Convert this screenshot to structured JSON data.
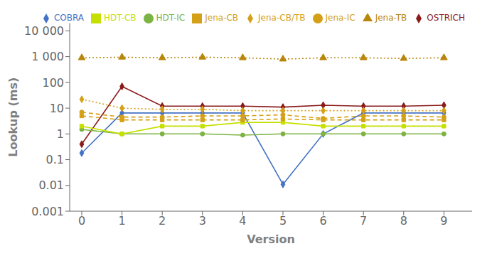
{
  "chart_data": {
    "type": "line",
    "x": [
      0,
      1,
      2,
      3,
      4,
      5,
      6,
      7,
      8,
      9
    ],
    "xlim": [
      -0.3,
      9.7
    ],
    "xticks": [
      0,
      1,
      2,
      3,
      4,
      5,
      6,
      7,
      8,
      9
    ],
    "ylim": [
      0.001,
      20000
    ],
    "yticks": [
      0.001,
      0.01,
      0.1,
      1,
      10,
      100,
      {
        "value": 1000,
        "label": "1 000"
      },
      {
        "value": 10000,
        "label": "10 000"
      }
    ],
    "log": "y",
    "grid": false,
    "legend": "upper right",
    "x_label": "Version",
    "y_label": "Lookup (ms)",
    "series": [
      {
        "name": "OSTRICH",
        "color": "#8B1A1A",
        "marker": "diamond",
        "line_style": "solid",
        "values": [
          0.4,
          70,
          12,
          12,
          12,
          11,
          13,
          12,
          12,
          13
        ]
      },
      {
        "name": "COBRA",
        "color": "#4472C4",
        "marker": "diamond",
        "line_style": "solid",
        "values": [
          0.18,
          6.5,
          6.5,
          6.5,
          6.5,
          0.011,
          1.0,
          6.5,
          6.5,
          6.5
        ]
      },
      {
        "name": "HDT-IC",
        "color": "#7CB342",
        "marker": "circle",
        "line_style": "solid",
        "values": [
          1.5,
          1.0,
          1.0,
          1.0,
          0.9,
          1.0,
          1.0,
          1.0,
          1.0,
          1.0
        ]
      },
      {
        "name": "HDT-CB",
        "color": "#C5E000",
        "marker": "square",
        "line_style": "solid",
        "values": [
          2.0,
          1.0,
          2.0,
          2.0,
          2.8,
          2.8,
          2.0,
          2.0,
          2.0,
          2.0
        ]
      },
      {
        "name": "Jena-IC",
        "color": "#D4A017",
        "marker": "circle",
        "line_style": "dashed",
        "values": [
          7.0,
          4.5,
          4.5,
          5.0,
          5.0,
          5.5,
          4.0,
          5.0,
          5.0,
          4.5
        ]
      },
      {
        "name": "Jena-CB",
        "color": "#D4A017",
        "marker": "square",
        "line_style": "dashed",
        "values": [
          5.0,
          3.5,
          3.5,
          3.5,
          3.5,
          3.8,
          3.5,
          3.5,
          3.5,
          3.5
        ]
      },
      {
        "name": "Jena-TB",
        "color": "#B8860B",
        "marker": "triangle",
        "line_style": "dotted",
        "values": [
          900,
          950,
          900,
          950,
          900,
          800,
          900,
          900,
          850,
          900
        ]
      },
      {
        "name": "Jena-CB/TB",
        "color": "#D4A017",
        "marker": "diamond",
        "line_style": "dotted",
        "values": [
          22,
          10,
          9,
          9,
          8,
          8,
          8,
          8,
          8,
          8
        ]
      }
    ]
  }
}
